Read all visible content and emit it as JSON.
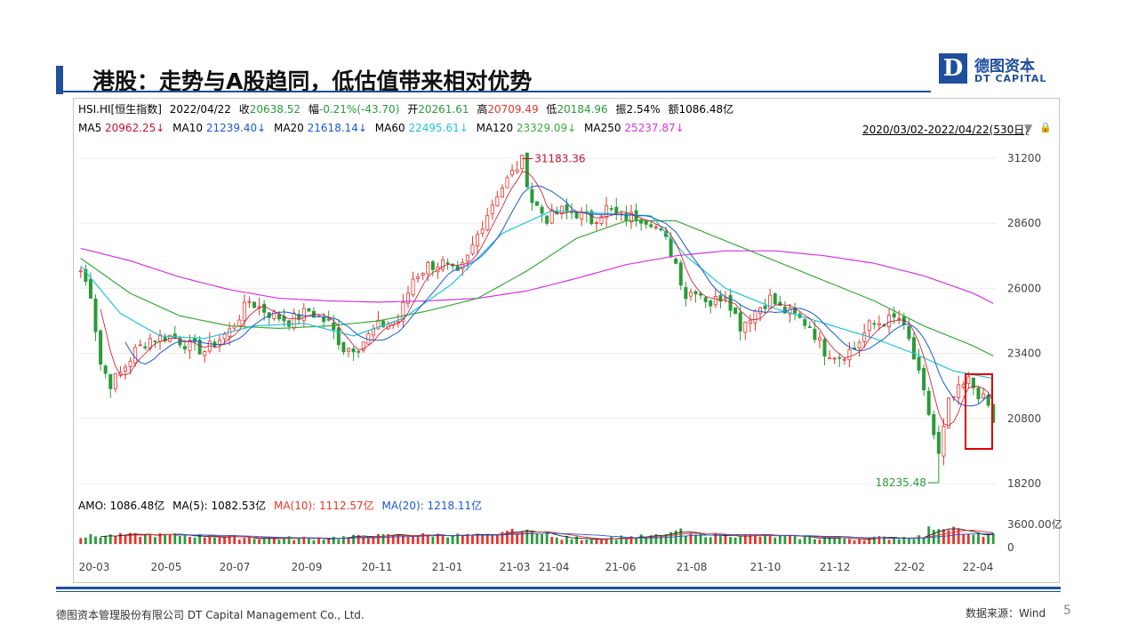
{
  "slide": {
    "title": "港股：走势与A股趋同，低估值带来相对优势",
    "logo_cn": "德图资本",
    "logo_en": "DT CAPITAL",
    "logo_letter": "D",
    "footer_left": "德图资本管理股份有限公司  DT Capital Management  Co., Ltd.",
    "footer_right": "数据来源：Wind",
    "page_number": "5"
  },
  "info": {
    "code": "HSI.HI[恒生指数]",
    "date": "2022/04/22",
    "close_label": "收",
    "close": "20638.52",
    "change_label": "幅",
    "change": "-0.21%(-43.70)",
    "open_label": "开",
    "open": "20261.61",
    "high_label": "高",
    "high": "20709.49",
    "low_label": "低",
    "low": "20184.96",
    "amp_label": "振",
    "amp": "2.54%",
    "amount_label": "额",
    "amount": "1086.48亿"
  },
  "ma": {
    "ma5_label": "MA5",
    "ma5": "20962.25↓",
    "ma10_label": "MA10",
    "ma10": "21239.40↓",
    "ma20_label": "MA20",
    "ma20": "21618.14↓",
    "ma60_label": "MA60",
    "ma60": "22495.61↓",
    "ma120_label": "MA120",
    "ma120": "23329.09↓",
    "ma250_label": "MA250",
    "ma250": "25237.87↓",
    "date_range": "2020/03/02-2022/04/22(530日)"
  },
  "amo": {
    "label": "AMO: 1086.48亿",
    "ma5": "MA(5): 1082.53亿",
    "ma10": "MA(10): 1112.57亿",
    "ma20": "MA(20): 1218.11亿"
  },
  "colors": {
    "up": "#e8332a",
    "down": "#2a9a3a",
    "ma5": "#c8102e",
    "ma10": "#1c57d8",
    "ma20": "#1c57d8",
    "ma60": "#22c3d8",
    "ma120": "#3aaa3a",
    "ma250": "#d633e0",
    "brand": "#1f4e9c",
    "highlight_box": "#e00000"
  },
  "chart_data": {
    "type": "candlestick",
    "title": "",
    "xlabel": "",
    "ylabel": "",
    "ylim": [
      18200,
      31200
    ],
    "y_ticks": [
      "31200",
      "28600",
      "26000",
      "23400",
      "20800",
      "18200"
    ],
    "x_ticks": [
      "20-03",
      "20-05",
      "20-07",
      "20-09",
      "20-11",
      "21-01",
      "21-03",
      "21-04",
      "21-06",
      "21-08",
      "21-10",
      "21-12",
      "22-02",
      "22-04"
    ],
    "annotations": [
      {
        "text": "31183.36",
        "value": 31183.36,
        "type": "high"
      },
      {
        "text": "18235.48",
        "value": 18235.48,
        "type": "low"
      }
    ],
    "price_path": [
      [
        0,
        26700
      ],
      [
        2,
        25800
      ],
      [
        4,
        23000
      ],
      [
        6,
        22200
      ],
      [
        8,
        22600
      ],
      [
        11,
        23500
      ],
      [
        14,
        24000
      ],
      [
        18,
        24100
      ],
      [
        22,
        23700
      ],
      [
        25,
        23500
      ],
      [
        30,
        24300
      ],
      [
        34,
        25500
      ],
      [
        38,
        25000
      ],
      [
        42,
        24700
      ],
      [
        46,
        25100
      ],
      [
        50,
        24600
      ],
      [
        53,
        23600
      ],
      [
        56,
        23700
      ],
      [
        60,
        24500
      ],
      [
        64,
        24700
      ],
      [
        67,
        26400
      ],
      [
        70,
        26900
      ],
      [
        73,
        27000
      ],
      [
        76,
        26500
      ],
      [
        78,
        27200
      ],
      [
        81,
        28600
      ],
      [
        84,
        29800
      ],
      [
        87,
        30600
      ],
      [
        89,
        31100
      ],
      [
        91,
        29500
      ],
      [
        94,
        28800
      ],
      [
        97,
        29100
      ],
      [
        100,
        29000
      ],
      [
        103,
        28700
      ],
      [
        106,
        29200
      ],
      [
        109,
        28800
      ],
      [
        112,
        28900
      ],
      [
        115,
        28700
      ],
      [
        118,
        27900
      ],
      [
        120,
        27000
      ],
      [
        122,
        25700
      ],
      [
        124,
        26000
      ],
      [
        127,
        25400
      ],
      [
        130,
        25800
      ],
      [
        133,
        24500
      ],
      [
        136,
        25100
      ],
      [
        139,
        25600
      ],
      [
        141,
        25200
      ],
      [
        144,
        24900
      ],
      [
        147,
        24500
      ],
      [
        150,
        23500
      ],
      [
        153,
        23300
      ],
      [
        156,
        23600
      ],
      [
        159,
        24500
      ],
      [
        162,
        24700
      ],
      [
        165,
        24800
      ],
      [
        167,
        23900
      ],
      [
        169,
        22500
      ],
      [
        171,
        21000
      ],
      [
        173,
        19300
      ],
      [
        175,
        21400
      ],
      [
        177,
        21900
      ],
      [
        179,
        22300
      ],
      [
        181,
        21800
      ],
      [
        183,
        21300
      ],
      [
        184,
        20640
      ]
    ],
    "ma250_path": [
      [
        0,
        27600
      ],
      [
        10,
        27100
      ],
      [
        20,
        26450
      ],
      [
        30,
        25950
      ],
      [
        40,
        25600
      ],
      [
        50,
        25500
      ],
      [
        60,
        25450
      ],
      [
        70,
        25500
      ],
      [
        80,
        25600
      ],
      [
        90,
        25900
      ],
      [
        100,
        26400
      ],
      [
        110,
        26950
      ],
      [
        120,
        27300
      ],
      [
        130,
        27500
      ],
      [
        140,
        27500
      ],
      [
        150,
        27300
      ],
      [
        160,
        27000
      ],
      [
        170,
        26500
      ],
      [
        180,
        25800
      ],
      [
        184,
        25400
      ]
    ],
    "ma120_path": [
      [
        0,
        27200
      ],
      [
        10,
        25800
      ],
      [
        20,
        24900
      ],
      [
        30,
        24500
      ],
      [
        40,
        24400
      ],
      [
        50,
        24500
      ],
      [
        60,
        24700
      ],
      [
        70,
        25100
      ],
      [
        80,
        25600
      ],
      [
        90,
        26700
      ],
      [
        100,
        28000
      ],
      [
        110,
        28700
      ],
      [
        120,
        28700
      ],
      [
        130,
        27900
      ],
      [
        140,
        27100
      ],
      [
        150,
        26300
      ],
      [
        160,
        25500
      ],
      [
        170,
        24500
      ],
      [
        180,
        23700
      ],
      [
        184,
        23300
      ]
    ],
    "ma60_path": [
      [
        0,
        26900
      ],
      [
        8,
        25000
      ],
      [
        16,
        24100
      ],
      [
        25,
        24000
      ],
      [
        35,
        24500
      ],
      [
        45,
        24600
      ],
      [
        55,
        24100
      ],
      [
        65,
        24800
      ],
      [
        75,
        26200
      ],
      [
        85,
        28200
      ],
      [
        95,
        29100
      ],
      [
        105,
        29000
      ],
      [
        115,
        28900
      ],
      [
        122,
        27300
      ],
      [
        130,
        26000
      ],
      [
        140,
        25200
      ],
      [
        150,
        24600
      ],
      [
        160,
        24000
      ],
      [
        168,
        23400
      ],
      [
        176,
        22700
      ],
      [
        184,
        22400
      ]
    ],
    "volume_ylim": [
      0,
      3600
    ],
    "volume_ticks": [
      "3600.00亿",
      "0"
    ]
  }
}
